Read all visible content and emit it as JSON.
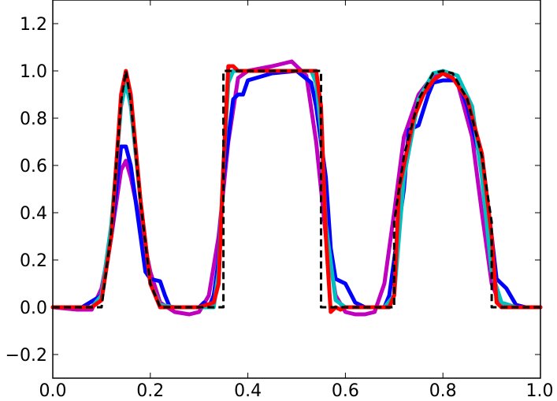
{
  "chart_data": {
    "type": "line",
    "title": "",
    "xlabel": "",
    "ylabel": "",
    "xlim": [
      0.0,
      1.0
    ],
    "ylim": [
      -0.3,
      1.3
    ],
    "grid": false,
    "xticks": [
      0.0,
      0.2,
      0.4,
      0.6,
      0.8,
      1.0
    ],
    "xtick_labels": [
      "0.0",
      "0.2",
      "0.4",
      "0.6",
      "0.8",
      "1.0"
    ],
    "yticks": [
      -0.2,
      0.0,
      0.2,
      0.4,
      0.6,
      0.8,
      1.0,
      1.2
    ],
    "ytick_labels": [
      "−0.2",
      "0.0",
      "0.2",
      "0.4",
      "0.6",
      "0.8",
      "1.0",
      "1.2"
    ],
    "series": [
      {
        "color": "#bf00bf",
        "x": [
          0.0,
          0.05,
          0.08,
          0.1,
          0.12,
          0.14,
          0.15,
          0.16,
          0.18,
          0.2,
          0.22,
          0.25,
          0.28,
          0.3,
          0.32,
          0.34,
          0.36,
          0.38,
          0.4,
          0.45,
          0.49,
          0.52,
          0.54,
          0.56,
          0.58,
          0.6,
          0.62,
          0.64,
          0.66,
          0.68,
          0.7,
          0.72,
          0.75,
          0.78,
          0.8,
          0.83,
          0.86,
          0.88,
          0.9,
          0.92,
          0.95,
          1.0
        ],
        "y": [
          0.0,
          -0.01,
          -0.01,
          0.08,
          0.3,
          0.58,
          0.62,
          0.55,
          0.35,
          0.15,
          0.02,
          -0.02,
          -0.03,
          -0.02,
          0.05,
          0.3,
          0.7,
          0.97,
          1.0,
          1.02,
          1.04,
          0.98,
          0.7,
          0.3,
          0.05,
          -0.02,
          -0.03,
          -0.03,
          -0.02,
          0.1,
          0.4,
          0.72,
          0.9,
          0.98,
          0.99,
          0.95,
          0.72,
          0.4,
          0.1,
          0.0,
          0.0,
          0.0
        ]
      },
      {
        "color": "#0000ff",
        "x": [
          0.0,
          0.06,
          0.1,
          0.12,
          0.14,
          0.15,
          0.16,
          0.17,
          0.18,
          0.19,
          0.2,
          0.22,
          0.23,
          0.24,
          0.26,
          0.28,
          0.3,
          0.31,
          0.32,
          0.33,
          0.34,
          0.35,
          0.37,
          0.38,
          0.39,
          0.4,
          0.45,
          0.5,
          0.53,
          0.54,
          0.56,
          0.57,
          0.58,
          0.6,
          0.62,
          0.64,
          0.66,
          0.68,
          0.69,
          0.7,
          0.72,
          0.73,
          0.74,
          0.75,
          0.77,
          0.78,
          0.8,
          0.83,
          0.85,
          0.88,
          0.9,
          0.91,
          0.92,
          0.93,
          0.95,
          0.97,
          1.0
        ],
        "y": [
          0.0,
          0.0,
          0.05,
          0.3,
          0.68,
          0.68,
          0.6,
          0.45,
          0.3,
          0.15,
          0.12,
          0.11,
          0.05,
          0.0,
          0.0,
          0.0,
          0.0,
          0.02,
          0.0,
          0.05,
          0.2,
          0.55,
          0.88,
          0.9,
          0.9,
          0.96,
          0.99,
          1.0,
          0.95,
          0.85,
          0.55,
          0.25,
          0.12,
          0.1,
          0.02,
          0.0,
          0.0,
          0.0,
          0.05,
          0.2,
          0.5,
          0.75,
          0.76,
          0.77,
          0.9,
          0.95,
          0.96,
          0.96,
          0.85,
          0.6,
          0.3,
          0.12,
          0.1,
          0.08,
          0.01,
          0.0,
          0.0
        ]
      },
      {
        "color": "#00bfbf",
        "x": [
          0.0,
          0.08,
          0.1,
          0.12,
          0.14,
          0.15,
          0.16,
          0.18,
          0.2,
          0.22,
          0.25,
          0.3,
          0.33,
          0.34,
          0.35,
          0.36,
          0.37,
          0.4,
          0.45,
          0.5,
          0.53,
          0.54,
          0.55,
          0.56,
          0.58,
          0.6,
          0.65,
          0.68,
          0.7,
          0.72,
          0.75,
          0.78,
          0.8,
          0.83,
          0.86,
          0.88,
          0.9,
          0.92,
          0.95,
          1.0
        ],
        "y": [
          0.0,
          0.0,
          0.05,
          0.35,
          0.85,
          0.95,
          0.85,
          0.45,
          0.1,
          0.01,
          0.0,
          0.0,
          0.0,
          0.15,
          0.6,
          0.95,
          1.0,
          1.0,
          1.0,
          1.0,
          1.0,
          0.95,
          0.75,
          0.35,
          0.03,
          0.0,
          0.0,
          0.0,
          0.05,
          0.55,
          0.88,
          0.99,
          1.0,
          0.98,
          0.85,
          0.55,
          0.15,
          0.02,
          0.0,
          0.0
        ]
      },
      {
        "color": "#ff0000",
        "x": [
          0.0,
          0.08,
          0.1,
          0.12,
          0.14,
          0.15,
          0.16,
          0.18,
          0.2,
          0.22,
          0.25,
          0.3,
          0.33,
          0.34,
          0.35,
          0.36,
          0.37,
          0.38,
          0.4,
          0.45,
          0.5,
          0.54,
          0.55,
          0.56,
          0.57,
          0.58,
          0.59,
          0.6,
          0.63,
          0.66,
          0.69,
          0.7,
          0.71,
          0.72,
          0.74,
          0.76,
          0.78,
          0.8,
          0.82,
          0.85,
          0.88,
          0.9,
          0.91,
          0.92,
          0.95,
          1.0
        ],
        "y": [
          0.0,
          0.0,
          0.03,
          0.3,
          0.9,
          1.0,
          0.9,
          0.45,
          0.1,
          0.0,
          0.0,
          0.0,
          0.02,
          0.1,
          0.6,
          1.02,
          1.02,
          1.0,
          1.0,
          1.0,
          1.0,
          1.0,
          0.85,
          0.3,
          -0.02,
          0.0,
          -0.01,
          0.0,
          0.0,
          0.0,
          0.0,
          0.05,
          0.5,
          0.6,
          0.8,
          0.9,
          0.96,
          0.99,
          0.97,
          0.88,
          0.65,
          0.3,
          0.02,
          0.0,
          0.0,
          0.0
        ]
      },
      {
        "color": "#000000",
        "dashed": true,
        "x": [
          0.0,
          0.1,
          0.12,
          0.14,
          0.15,
          0.16,
          0.18,
          0.2,
          0.22,
          0.25,
          0.35,
          0.35,
          0.55,
          0.55,
          0.7,
          0.7,
          0.72,
          0.75,
          0.78,
          0.8,
          0.82,
          0.85,
          0.88,
          0.9,
          0.9,
          1.0
        ],
        "y": [
          0.0,
          0.0,
          0.32,
          0.87,
          1.0,
          0.87,
          0.44,
          0.1,
          0.0,
          0.0,
          0.0,
          1.0,
          1.0,
          0.0,
          0.0,
          0.36,
          0.64,
          0.88,
          0.99,
          1.0,
          0.99,
          0.88,
          0.64,
          0.36,
          0.0,
          0.0
        ]
      }
    ]
  }
}
